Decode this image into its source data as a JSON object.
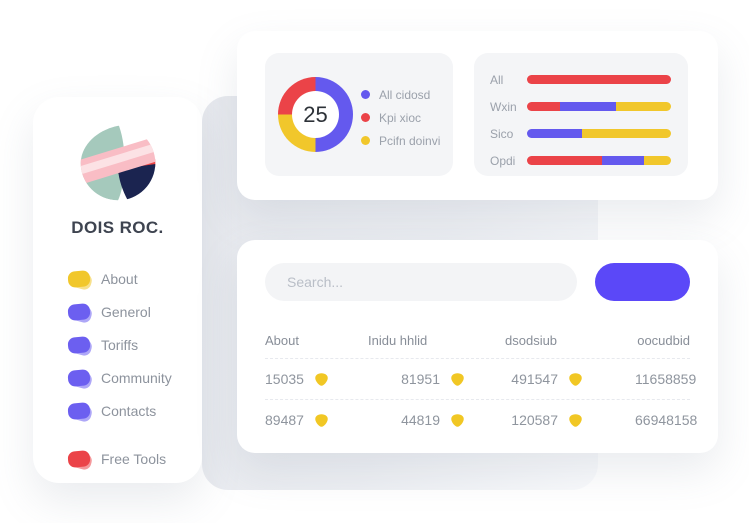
{
  "colors": {
    "red": "#EB4348",
    "yellow": "#F1C72B",
    "chart_blue": "#6459EE",
    "blob_blue": "#6C5FF0",
    "button_blue": "#5B48F8"
  },
  "sidebar": {
    "brand": "DOIS ROC.",
    "menu": [
      {
        "label": "About",
        "color": "yellow"
      },
      {
        "label": "Generol",
        "color": "blob_blue"
      },
      {
        "label": "Toriffs",
        "color": "blob_blue"
      },
      {
        "label": "Community",
        "color": "blob_blue"
      },
      {
        "label": "Contacts",
        "color": "blob_blue"
      },
      {
        "label": "Free Tools",
        "color": "red"
      }
    ]
  },
  "stats_card": {
    "donut_value": "25",
    "legend": [
      {
        "label": "All cidosd",
        "color": "chart_blue"
      },
      {
        "label": "Kpi xioc",
        "color": "red"
      },
      {
        "label": "Pcifn doinvi",
        "color": "yellow"
      }
    ]
  },
  "table_card": {
    "search_placeholder": "Search...",
    "columns": [
      "About",
      "Inidu hhlid",
      "dsodsiub",
      "oocudbid"
    ],
    "rows": [
      {
        "c1": "15035",
        "c2": "81951",
        "c3": "491547",
        "c4": "11658859"
      },
      {
        "c1": "89487",
        "c2": "44819",
        "c3": "120587",
        "c4": "66948158"
      }
    ]
  },
  "chart_data": [
    {
      "type": "pie",
      "title": "",
      "center_label": "25",
      "slices": [
        {
          "name": "All cidosd",
          "color": "chart_blue",
          "pct": 50
        },
        {
          "name": "Pcifn doinvi",
          "color": "yellow",
          "pct": 25
        },
        {
          "name": "Kpi xioc",
          "color": "red",
          "pct": 25
        }
      ],
      "legend_position": "right"
    },
    {
      "type": "bar",
      "orientation": "horizontal",
      "stacked": true,
      "categories": [
        "All",
        "Wxin",
        "Sico",
        "Opdi"
      ],
      "rows": [
        {
          "label": "All",
          "segments": [
            {
              "color": "red",
              "pct": 100
            }
          ]
        },
        {
          "label": "Wxin",
          "segments": [
            {
              "color": "red",
              "pct": 23
            },
            {
              "color": "chart_blue",
              "pct": 39
            },
            {
              "color": "yellow",
              "pct": 38
            }
          ]
        },
        {
          "label": "Sico",
          "segments": [
            {
              "color": "chart_blue",
              "pct": 38
            },
            {
              "color": "yellow",
              "pct": 62
            }
          ]
        },
        {
          "label": "Opdi",
          "segments": [
            {
              "color": "red",
              "pct": 52
            },
            {
              "color": "chart_blue",
              "pct": 29
            },
            {
              "color": "yellow",
              "pct": 19
            }
          ]
        }
      ]
    }
  ]
}
